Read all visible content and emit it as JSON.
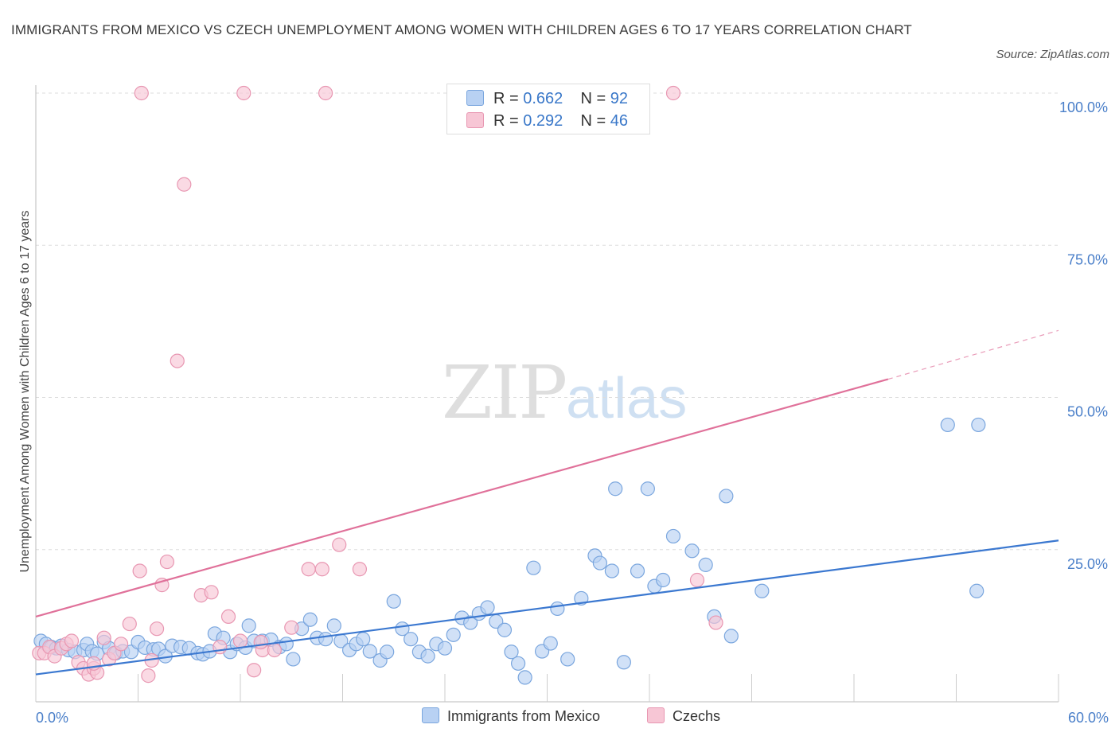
{
  "title": "IMMIGRANTS FROM MEXICO VS CZECH UNEMPLOYMENT AMONG WOMEN WITH CHILDREN AGES 6 TO 17 YEARS CORRELATION CHART",
  "source": "Source: ZipAtlas.com",
  "watermark": {
    "zip": "ZIP",
    "atlas": "atlas"
  },
  "legend": {
    "r_label": "R =",
    "n_label": "N =",
    "series": [
      {
        "r": "0.662",
        "n": "92"
      },
      {
        "r": "0.292",
        "n": "46"
      }
    ]
  },
  "colors": {
    "blue_fill": "#b8d1f3",
    "blue_stroke": "#7aa6de",
    "blue_line": "#3b78d0",
    "pink_fill": "#f7c6d5",
    "pink_stroke": "#e897b2",
    "pink_line": "#e0719a",
    "tick_label": "#4a7fc9",
    "grid": "#dddddd"
  },
  "chart_data": {
    "type": "scatter",
    "title": "IMMIGRANTS FROM MEXICO VS CZECH UNEMPLOYMENT AMONG WOMEN WITH CHILDREN AGES 6 TO 17 YEARS CORRELATION CHART",
    "xlabel": "",
    "ylabel": "Unemployment Among Women with Children Ages 6 to 17 years",
    "xlim": [
      0,
      60
    ],
    "ylim": [
      0,
      100
    ],
    "x_tick_labels": [
      "0.0%",
      "60.0%"
    ],
    "y_tick_labels": [
      "25.0%",
      "50.0%",
      "75.0%",
      "100.0%"
    ],
    "y_ticks": [
      25,
      50,
      75,
      100
    ],
    "grid": true,
    "legend_position": "top-center",
    "series": [
      {
        "name": "Immigrants from Mexico",
        "r": 0.662,
        "n": 92,
        "trend": {
          "x": [
            0,
            60
          ],
          "y": [
            4.5,
            26.5
          ]
        },
        "points": [
          [
            0.3,
            10.0
          ],
          [
            0.6,
            9.5
          ],
          [
            0.9,
            9.0
          ],
          [
            1.2,
            8.8
          ],
          [
            1.5,
            9.2
          ],
          [
            1.9,
            8.5
          ],
          [
            2.3,
            8.2
          ],
          [
            2.8,
            8.5
          ],
          [
            3.0,
            9.5
          ],
          [
            3.3,
            8.3
          ],
          [
            3.6,
            7.9
          ],
          [
            4.0,
            9.8
          ],
          [
            4.3,
            8.8
          ],
          [
            4.7,
            8.0
          ],
          [
            5.1,
            8.3
          ],
          [
            5.6,
            8.2
          ],
          [
            6.0,
            9.8
          ],
          [
            6.4,
            8.9
          ],
          [
            6.9,
            8.6
          ],
          [
            7.2,
            8.7
          ],
          [
            7.6,
            7.5
          ],
          [
            8.0,
            9.2
          ],
          [
            8.5,
            9.0
          ],
          [
            9.0,
            8.8
          ],
          [
            9.5,
            8.0
          ],
          [
            9.8,
            7.8
          ],
          [
            10.2,
            8.3
          ],
          [
            10.5,
            11.2
          ],
          [
            11.0,
            10.5
          ],
          [
            11.4,
            8.2
          ],
          [
            11.8,
            9.5
          ],
          [
            12.3,
            8.9
          ],
          [
            12.5,
            12.5
          ],
          [
            12.8,
            10.0
          ],
          [
            13.3,
            10.0
          ],
          [
            13.8,
            10.2
          ],
          [
            14.3,
            9.0
          ],
          [
            14.7,
            9.5
          ],
          [
            15.1,
            7.0
          ],
          [
            15.6,
            12.0
          ],
          [
            16.1,
            13.5
          ],
          [
            16.5,
            10.5
          ],
          [
            17.0,
            10.3
          ],
          [
            17.5,
            12.5
          ],
          [
            17.9,
            10.0
          ],
          [
            18.4,
            8.5
          ],
          [
            18.8,
            9.5
          ],
          [
            19.2,
            10.3
          ],
          [
            19.6,
            8.3
          ],
          [
            20.2,
            6.8
          ],
          [
            20.6,
            8.2
          ],
          [
            21.0,
            16.5
          ],
          [
            21.5,
            12.0
          ],
          [
            22.0,
            10.3
          ],
          [
            22.5,
            8.2
          ],
          [
            23.0,
            7.5
          ],
          [
            23.5,
            9.5
          ],
          [
            24.0,
            8.8
          ],
          [
            24.5,
            11.0
          ],
          [
            25.0,
            13.8
          ],
          [
            25.5,
            13.0
          ],
          [
            26.0,
            14.5
          ],
          [
            26.5,
            15.5
          ],
          [
            27.0,
            13.2
          ],
          [
            27.5,
            11.8
          ],
          [
            27.9,
            8.2
          ],
          [
            28.3,
            6.3
          ],
          [
            28.7,
            4.0
          ],
          [
            29.2,
            22.0
          ],
          [
            29.7,
            8.3
          ],
          [
            30.2,
            9.6
          ],
          [
            30.6,
            15.3
          ],
          [
            31.2,
            7.0
          ],
          [
            32.0,
            17.0
          ],
          [
            32.8,
            24.0
          ],
          [
            33.1,
            22.8
          ],
          [
            33.8,
            21.5
          ],
          [
            34.0,
            35.0
          ],
          [
            34.5,
            6.5
          ],
          [
            35.3,
            21.5
          ],
          [
            35.9,
            35.0
          ],
          [
            36.3,
            19.0
          ],
          [
            36.8,
            20.0
          ],
          [
            37.4,
            27.2
          ],
          [
            38.5,
            24.8
          ],
          [
            39.3,
            22.5
          ],
          [
            39.8,
            14.0
          ],
          [
            40.5,
            33.8
          ],
          [
            40.8,
            10.8
          ],
          [
            42.6,
            18.2
          ],
          [
            53.5,
            45.5
          ],
          [
            55.3,
            45.5
          ],
          [
            55.2,
            18.2
          ]
        ]
      },
      {
        "name": "Czechs",
        "r": 0.292,
        "n": 46,
        "trend": {
          "x": [
            0,
            50
          ],
          "y": [
            14.0,
            53.0
          ]
        },
        "trend_dashed": {
          "x": [
            50,
            60
          ],
          "y": [
            53.0,
            61.0
          ]
        },
        "points": [
          [
            0.2,
            8.0
          ],
          [
            0.5,
            8.0
          ],
          [
            0.8,
            9.0
          ],
          [
            1.1,
            7.5
          ],
          [
            1.5,
            8.8
          ],
          [
            1.8,
            9.5
          ],
          [
            2.1,
            10.0
          ],
          [
            2.5,
            6.5
          ],
          [
            2.8,
            5.5
          ],
          [
            3.1,
            4.5
          ],
          [
            3.4,
            5.5
          ],
          [
            3.6,
            4.8
          ],
          [
            4.0,
            10.5
          ],
          [
            4.3,
            7.0
          ],
          [
            4.6,
            8.0
          ],
          [
            5.0,
            9.5
          ],
          [
            5.5,
            12.8
          ],
          [
            6.1,
            21.5
          ],
          [
            6.6,
            4.3
          ],
          [
            6.8,
            6.8
          ],
          [
            7.1,
            12.0
          ],
          [
            7.4,
            19.2
          ],
          [
            7.7,
            23.0
          ],
          [
            8.3,
            56.0
          ],
          [
            8.7,
            85.0
          ],
          [
            9.7,
            17.5
          ],
          [
            10.3,
            18.0
          ],
          [
            10.8,
            9.0
          ],
          [
            11.3,
            14.0
          ],
          [
            12.0,
            10.0
          ],
          [
            12.8,
            5.2
          ],
          [
            13.3,
            8.5
          ],
          [
            14.0,
            8.5
          ],
          [
            15.0,
            12.2
          ],
          [
            16.0,
            21.8
          ],
          [
            16.8,
            21.8
          ],
          [
            17.8,
            25.8
          ],
          [
            19.0,
            21.8
          ],
          [
            6.2,
            100.0
          ],
          [
            12.2,
            100.0
          ],
          [
            17.0,
            100.0
          ],
          [
            37.4,
            100.0
          ],
          [
            38.8,
            20.0
          ],
          [
            39.9,
            13.0
          ],
          [
            13.2,
            9.8
          ],
          [
            3.4,
            6.3
          ]
        ]
      }
    ]
  }
}
